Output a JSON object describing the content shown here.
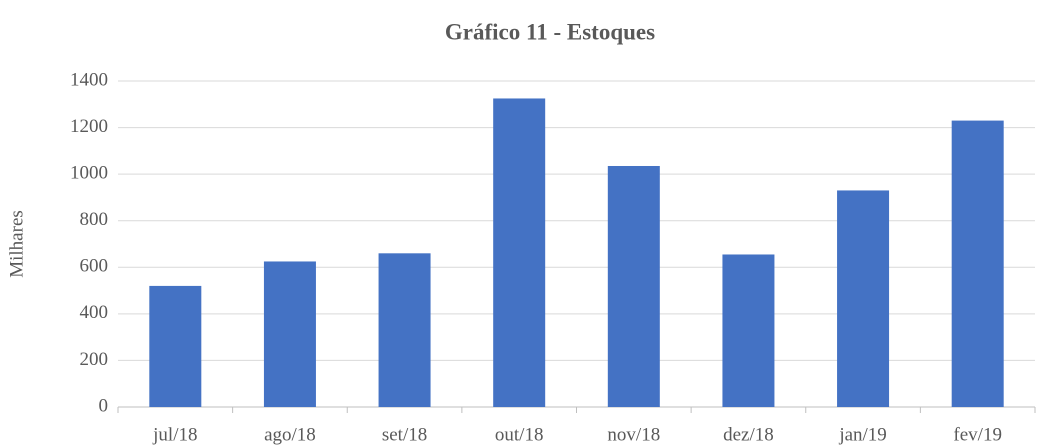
{
  "chart_data": {
    "type": "bar",
    "title": "Gráfico 11 - Estoques",
    "y_label": "Milhares",
    "categories": [
      "jul/18",
      "ago/18",
      "set/18",
      "out/18",
      "nov/18",
      "dez/18",
      "jan/19",
      "fev/19"
    ],
    "values": [
      520,
      625,
      660,
      1325,
      1035,
      655,
      930,
      1230
    ],
    "color": "#4472c4",
    "ylim": [
      0,
      1400
    ],
    "yticks": [
      0,
      200,
      400,
      600,
      800,
      1000,
      1200,
      1400
    ],
    "grid": true
  }
}
